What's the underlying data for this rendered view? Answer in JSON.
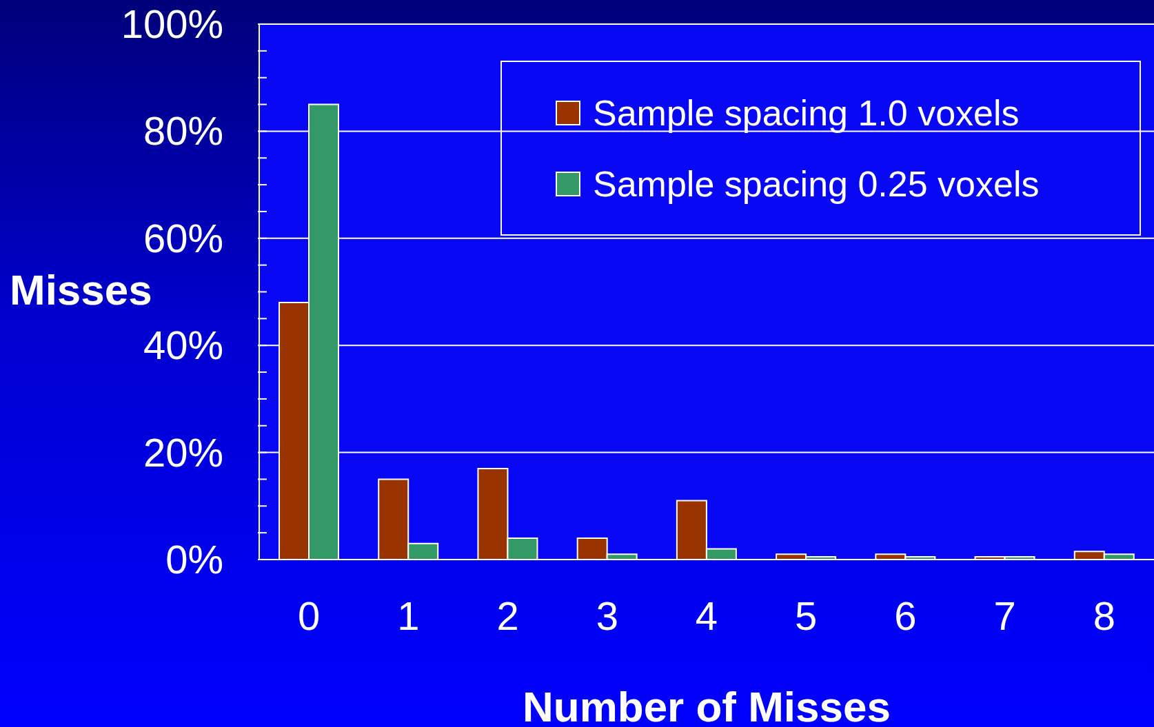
{
  "chart_data": {
    "type": "bar",
    "xlabel": "Number of Misses",
    "ylabel": "Misses",
    "categories": [
      "0",
      "1",
      "2",
      "3",
      "4",
      "5",
      "6",
      "7",
      "8"
    ],
    "series": [
      {
        "name": "Sample spacing 1.0 voxels",
        "color": "#993300",
        "values": [
          48,
          15,
          17,
          4,
          11,
          1,
          1,
          0.5,
          1.5
        ]
      },
      {
        "name": "Sample spacing 0.25 voxels",
        "color": "#339966",
        "values": [
          85,
          3,
          4,
          1,
          2,
          0.5,
          0.5,
          0.5,
          1
        ]
      }
    ],
    "ylim": [
      0,
      100
    ],
    "yticks": [
      {
        "value": 0,
        "label": "0%"
      },
      {
        "value": 5,
        "label": null
      },
      {
        "value": 10,
        "label": null
      },
      {
        "value": 15,
        "label": null
      },
      {
        "value": 20,
        "label": "20%"
      },
      {
        "value": 25,
        "label": null
      },
      {
        "value": 30,
        "label": null
      },
      {
        "value": 35,
        "label": null
      },
      {
        "value": 40,
        "label": "40%"
      },
      {
        "value": 45,
        "label": null
      },
      {
        "value": 50,
        "label": null
      },
      {
        "value": 55,
        "label": null
      },
      {
        "value": 60,
        "label": "60%"
      },
      {
        "value": 65,
        "label": null
      },
      {
        "value": 70,
        "label": null
      },
      {
        "value": 75,
        "label": null
      },
      {
        "value": 80,
        "label": "80%"
      },
      {
        "value": 85,
        "label": null
      },
      {
        "value": 90,
        "label": null
      },
      {
        "value": 95,
        "label": null
      },
      {
        "value": 100,
        "label": "100%"
      }
    ],
    "grid": "y",
    "legend": "top right"
  }
}
